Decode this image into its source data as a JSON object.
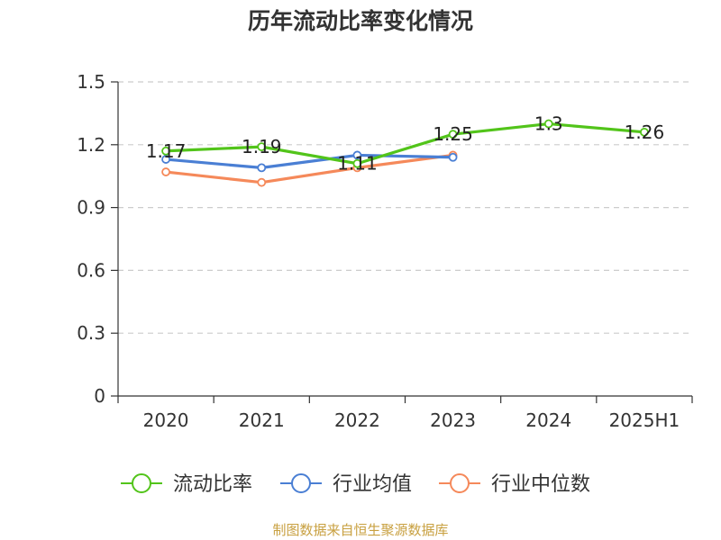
{
  "chart_data": {
    "type": "line",
    "title": "历年流动比率变化情况",
    "categories": [
      "2020",
      "2021",
      "2022",
      "2023",
      "2024",
      "2025H1"
    ],
    "ylim": [
      0,
      1.5
    ],
    "yticks": [
      "0",
      "0.3",
      "0.6",
      "0.9",
      "1.2",
      "1.5"
    ],
    "grid": true,
    "legend_position": "bottom",
    "series": [
      {
        "name": "流动比率",
        "color": "#52c41a",
        "values": [
          1.17,
          1.19,
          1.11,
          1.25,
          1.3,
          1.26
        ],
        "data_labels": [
          "1.17",
          "1.19",
          "1.11",
          "1.25",
          "1.3",
          "1.26"
        ]
      },
      {
        "name": "行业均值",
        "color": "#4a7fd4",
        "values": [
          1.13,
          1.09,
          1.15,
          1.14,
          null,
          null
        ]
      },
      {
        "name": "行业中位数",
        "color": "#f5895a",
        "values": [
          1.07,
          1.02,
          1.09,
          1.15,
          null,
          null
        ]
      }
    ]
  },
  "footer": {
    "source": "制图数据来自恒生聚源数据库"
  }
}
